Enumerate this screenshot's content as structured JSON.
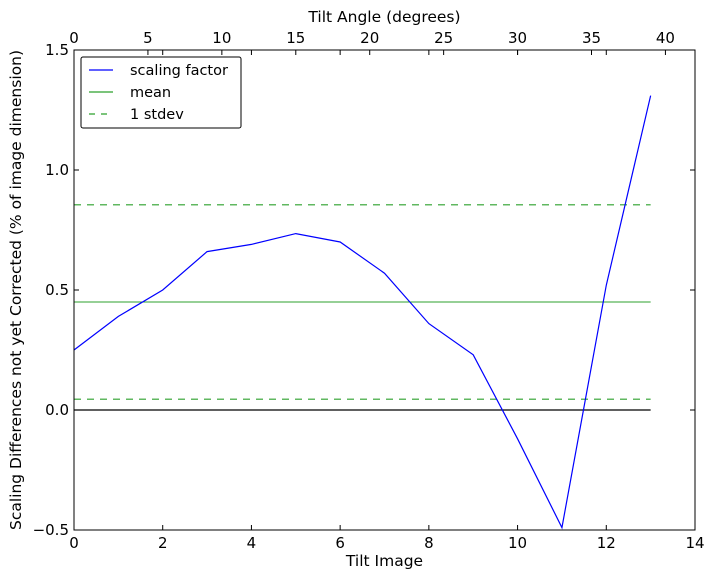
{
  "chart_data": {
    "type": "line",
    "title": "",
    "xlabel": "Tilt Image",
    "ylabel": "Scaling Differences not yet Corrected (% of image dimension)",
    "x2label": "Tilt Angle (degrees)",
    "xlim": [
      0,
      14
    ],
    "ylim": [
      -0.5,
      1.5
    ],
    "x2lim": [
      0,
      42
    ],
    "xticks": [
      0,
      2,
      4,
      6,
      8,
      10,
      12,
      14
    ],
    "xtick_labels": [
      "0",
      "2",
      "4",
      "6",
      "8",
      "10",
      "12",
      "14"
    ],
    "yticks": [
      -0.5,
      0.0,
      0.5,
      1.0,
      1.5
    ],
    "ytick_labels": [
      "−0.5",
      "0.0",
      "0.5",
      "1.0",
      "1.5"
    ],
    "x2ticks": [
      0,
      5,
      10,
      15,
      20,
      25,
      30,
      35,
      40
    ],
    "x2tick_labels": [
      "0",
      "5",
      "10",
      "15",
      "20",
      "25",
      "30",
      "35",
      "40"
    ],
    "grid": false,
    "legend_position": "top-left",
    "series": [
      {
        "name": "scaling factor",
        "color": "#0000ff",
        "style": "solid",
        "x": [
          0,
          1,
          2,
          3,
          4,
          5,
          6,
          7,
          8,
          9,
          10,
          11,
          12,
          13
        ],
        "y": [
          0.25,
          0.39,
          0.5,
          0.66,
          0.69,
          0.735,
          0.7,
          0.57,
          0.36,
          0.23,
          -0.12,
          -0.49,
          0.52,
          1.31
        ]
      },
      {
        "name": "mean",
        "color": "#2ca02c",
        "style": "solid",
        "x": [
          0,
          13
        ],
        "y": [
          0.45,
          0.45
        ]
      },
      {
        "name": "1 stdev",
        "color": "#2ca02c",
        "style": "dashed",
        "x": [
          0,
          13
        ],
        "y": [
          0.855,
          0.855
        ],
        "x_lower": [
          0,
          13
        ],
        "y_lower": [
          0.045,
          0.045
        ]
      }
    ],
    "reference_line": {
      "color": "#000000",
      "x": [
        0,
        13
      ],
      "y": [
        0.0,
        0.0
      ]
    }
  }
}
